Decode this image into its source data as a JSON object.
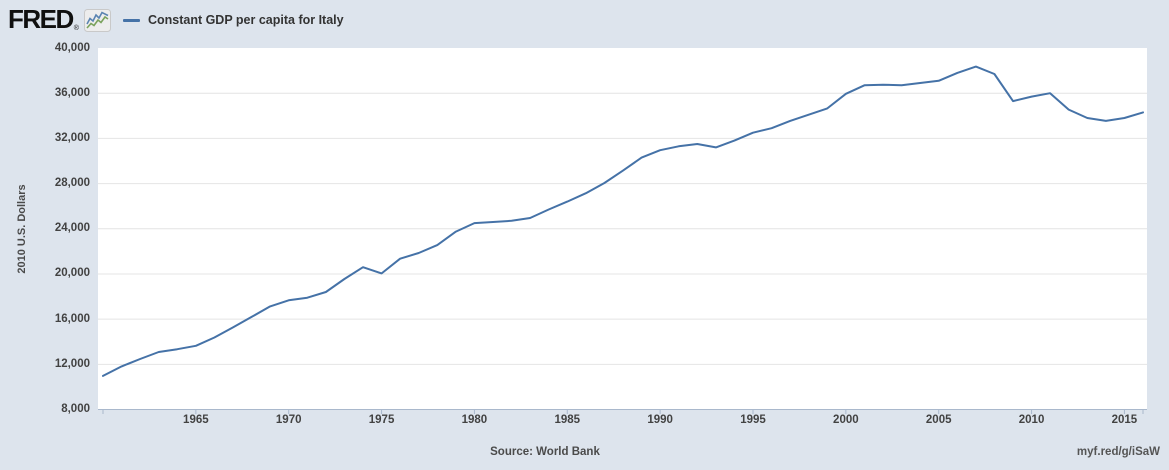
{
  "app": {
    "logo_text": "FRED",
    "registered_mark": "®"
  },
  "legend": {
    "series_label": "Constant GDP per capita for Italy"
  },
  "y_axis": {
    "title": "2010 U.S. Dollars",
    "min": 8000,
    "max": 40000,
    "tick_step": 4000,
    "ticks": [
      {
        "value": 8000,
        "label": "8,000"
      },
      {
        "value": 12000,
        "label": "12,000"
      },
      {
        "value": 16000,
        "label": "16,000"
      },
      {
        "value": 20000,
        "label": "20,000"
      },
      {
        "value": 24000,
        "label": "24,000"
      },
      {
        "value": 28000,
        "label": "28,000"
      },
      {
        "value": 32000,
        "label": "32,000"
      },
      {
        "value": 36000,
        "label": "36,000"
      },
      {
        "value": 40000,
        "label": "40,000"
      }
    ]
  },
  "x_axis": {
    "tick_years": [
      1965,
      1970,
      1975,
      1980,
      1985,
      1990,
      1995,
      2000,
      2005,
      2010,
      2015
    ]
  },
  "footer": {
    "source": "Source: World Bank",
    "short_url": "myf.red/g/iSaW"
  },
  "colors": {
    "line": "#4572a7",
    "background": "#dde4ed",
    "plot_background": "#ffffff",
    "gridline": "#e4e4e4",
    "axis_line": "#a9b8cc",
    "tick_label_text": "#424242",
    "header_text": "#333333",
    "footer_text": "#4a4a4a",
    "logo_icon_blue": "#5b84b1",
    "logo_icon_green": "#7aa25c"
  },
  "chart_data": {
    "type": "line",
    "title": "Constant GDP per capita for Italy",
    "xlabel": "",
    "ylabel": "2010 U.S. Dollars",
    "xlim": [
      1960,
      2016
    ],
    "ylim": [
      8000,
      40000
    ],
    "grid": true,
    "legend_position": "top-left",
    "x": [
      1960,
      1961,
      1962,
      1963,
      1964,
      1965,
      1966,
      1967,
      1968,
      1969,
      1970,
      1971,
      1972,
      1973,
      1974,
      1975,
      1976,
      1977,
      1978,
      1979,
      1980,
      1981,
      1982,
      1983,
      1984,
      1985,
      1986,
      1987,
      1988,
      1989,
      1990,
      1991,
      1992,
      1993,
      1994,
      1995,
      1996,
      1997,
      1998,
      1999,
      2000,
      2001,
      2002,
      2003,
      2004,
      2005,
      2006,
      2007,
      2008,
      2009,
      2010,
      2011,
      2012,
      2013,
      2014,
      2015,
      2016
    ],
    "values": [
      10970,
      11815,
      12470,
      13090,
      13340,
      13640,
      14370,
      15270,
      16200,
      17130,
      17670,
      17900,
      18400,
      19550,
      20600,
      20050,
      21350,
      21850,
      22550,
      23750,
      24500,
      24600,
      24700,
      24950,
      25700,
      26400,
      27150,
      28050,
      29150,
      30300,
      30950,
      31300,
      31500,
      31200,
      31800,
      32500,
      32900,
      33550,
      34100,
      34650,
      35950,
      36700,
      36750,
      36700,
      36900,
      37100,
      37800,
      38350,
      37700,
      35300,
      35700,
      36000,
      34550,
      33800,
      33550,
      33800,
      34300
    ]
  }
}
